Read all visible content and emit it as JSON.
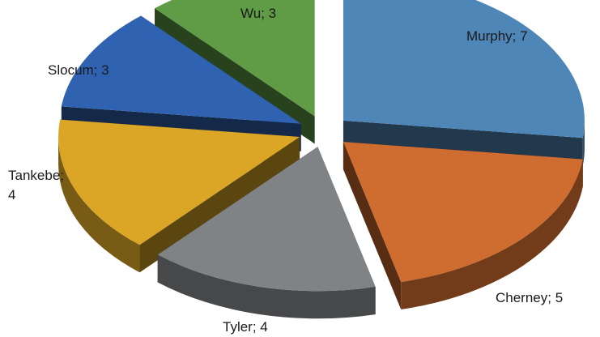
{
  "chart_data": {
    "type": "pie",
    "style": "3d-exploded",
    "slices": [
      {
        "name": "Murphy",
        "value": 7,
        "color": "#4f86b8",
        "label": "Murphy; 7"
      },
      {
        "name": "Cherney",
        "value": 5,
        "color": "#cf6c30",
        "label": "Cherney; 5"
      },
      {
        "name": "Tyler",
        "value": 4,
        "color": "#7f8386",
        "label": "Tyler; 4"
      },
      {
        "name": "Tankebe",
        "value": 4,
        "color": "#dba625",
        "label_lines": [
          "Tankebe;",
          "4"
        ]
      },
      {
        "name": "Slocum",
        "value": 3,
        "color": "#2f62b0",
        "label": "Slocum; 3"
      },
      {
        "name": "Wu",
        "value": 3,
        "color": "#5f9c45",
        "label": "Wu; 3"
      }
    ]
  }
}
